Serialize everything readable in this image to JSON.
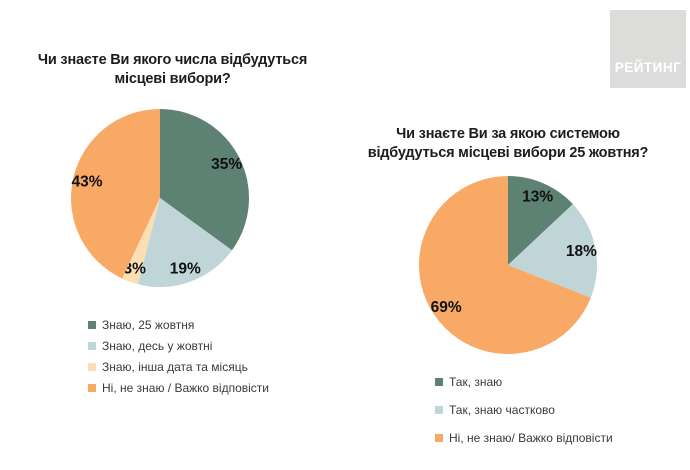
{
  "logo": {
    "text": "РЕЙТИНГ",
    "background": "#dcdcda",
    "text_color": "#ffffff"
  },
  "chart_data": [
    {
      "type": "pie",
      "title": "Чи знаєте Ви якого числа відбудуться місцеві вибори?",
      "title_lines": [
        "Чи знаєте Ви якого числа відбудуться",
        "місцеві вибори?"
      ],
      "slices": [
        {
          "label": "Знаю, 25 жовтня",
          "value": 35,
          "value_label": "35%",
          "color": "#5d8173"
        },
        {
          "label": "Знаю, десь у жовтні",
          "value": 19,
          "value_label": "19%",
          "color": "#bfd5d7"
        },
        {
          "label": "Знаю, інша дата та місяць",
          "value": 3,
          "value_label": "3%",
          "color": "#fcdeb3"
        },
        {
          "label": "Ні, не знаю / Важко відповісти",
          "value": 43,
          "value_label": "43%",
          "color": "#f9a966"
        }
      ],
      "start_angle_deg": 0,
      "direction": "clockwise",
      "legend_position": "bottom-left",
      "value_labels_inside": true
    },
    {
      "type": "pie",
      "title": "Чи знаєте Ви за якою системою відбудуться місцеві вибори 25 жовтня?",
      "title_lines": [
        "Чи знаєте Ви за якою системою",
        "відбудуться місцеві вибори 25 жовтня?"
      ],
      "slices": [
        {
          "label": "Так, знаю",
          "value": 13,
          "value_label": "13%",
          "color": "#5d8173"
        },
        {
          "label": "Так, знаю частково",
          "value": 18,
          "value_label": "18%",
          "color": "#bfd5d7"
        },
        {
          "label": "Ні, не знаю/ Важко відповісти",
          "value": 69,
          "value_label": "69%",
          "color": "#f9a966"
        }
      ],
      "start_angle_deg": 0,
      "direction": "clockwise",
      "legend_position": "bottom-left",
      "value_labels_inside": true
    }
  ]
}
